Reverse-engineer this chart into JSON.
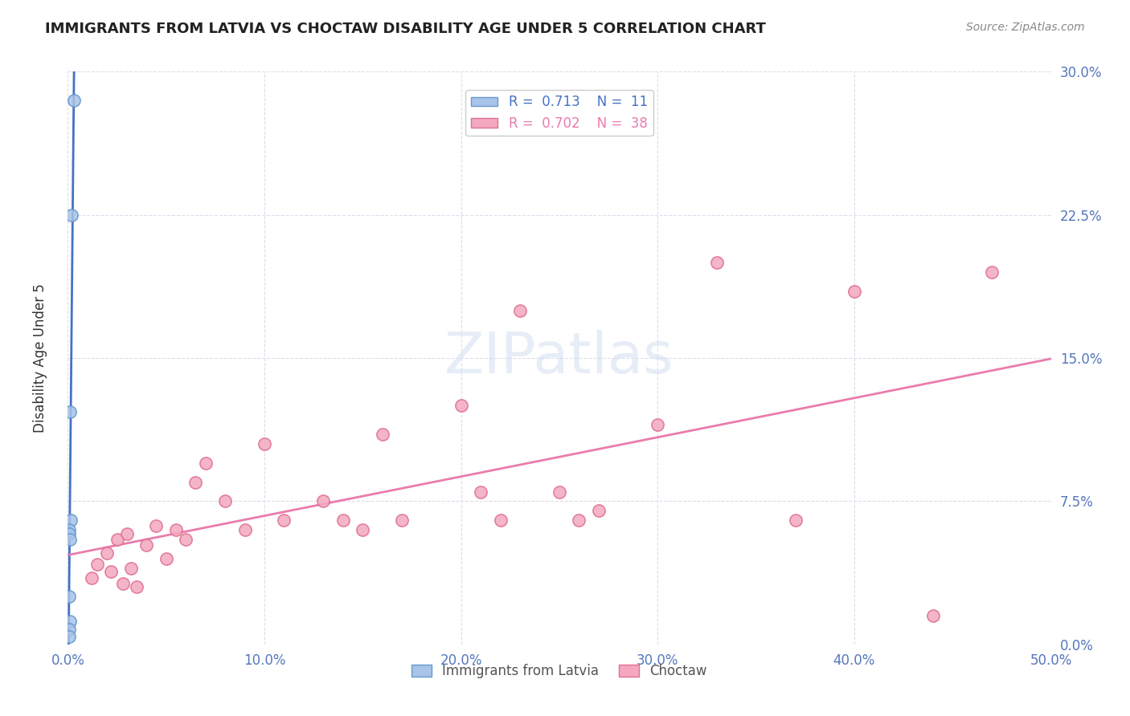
{
  "title": "IMMIGRANTS FROM LATVIA VS CHOCTAW DISABILITY AGE UNDER 5 CORRELATION CHART",
  "source": "Source: ZipAtlas.com",
  "ylabel": "Disability Age Under 5",
  "watermark": "ZIPatlas",
  "xlim": [
    0.0,
    50.0
  ],
  "ylim": [
    0.0,
    30.0
  ],
  "yticks": [
    0.0,
    7.5,
    15.0,
    22.5,
    30.0
  ],
  "xticks": [
    0.0,
    10.0,
    20.0,
    30.0,
    40.0,
    50.0
  ],
  "legend_blue_r": "0.713",
  "legend_blue_n": "11",
  "legend_pink_r": "0.702",
  "legend_pink_n": "38",
  "blue_scatter_x": [
    0.3,
    0.2,
    0.1,
    0.15,
    0.05,
    0.08,
    0.12,
    0.05,
    0.1,
    0.06,
    0.08
  ],
  "blue_scatter_y": [
    28.5,
    22.5,
    12.2,
    6.5,
    6.0,
    5.8,
    5.5,
    2.5,
    1.2,
    0.8,
    0.4
  ],
  "pink_scatter_x": [
    1.2,
    1.5,
    2.0,
    2.2,
    2.5,
    2.8,
    3.0,
    3.2,
    3.5,
    4.0,
    4.5,
    5.0,
    5.5,
    6.0,
    6.5,
    7.0,
    8.0,
    9.0,
    10.0,
    11.0,
    13.0,
    14.0,
    15.0,
    16.0,
    17.0,
    20.0,
    21.0,
    22.0,
    23.0,
    25.0,
    26.0,
    27.0,
    30.0,
    33.0,
    37.0,
    40.0,
    44.0,
    47.0
  ],
  "pink_scatter_y": [
    3.5,
    4.2,
    4.8,
    3.8,
    5.5,
    3.2,
    5.8,
    4.0,
    3.0,
    5.2,
    6.2,
    4.5,
    6.0,
    5.5,
    8.5,
    9.5,
    7.5,
    6.0,
    10.5,
    6.5,
    7.5,
    6.5,
    6.0,
    11.0,
    6.5,
    12.5,
    8.0,
    6.5,
    17.5,
    8.0,
    6.5,
    7.0,
    11.5,
    20.0,
    6.5,
    18.5,
    1.5,
    19.5
  ],
  "blue_line_color": "#4472C4",
  "pink_line_color": "#E97CAE",
  "blue_dot_color": "#A8C4E8",
  "pink_dot_color": "#F4A8C0",
  "blue_dot_edge": "#6699CC",
  "pink_dot_edge": "#E07090",
  "grid_color": "#DDDDEE",
  "background_color": "#FFFFFF",
  "title_fontsize": 13,
  "tick_label_color": "#5577BB"
}
